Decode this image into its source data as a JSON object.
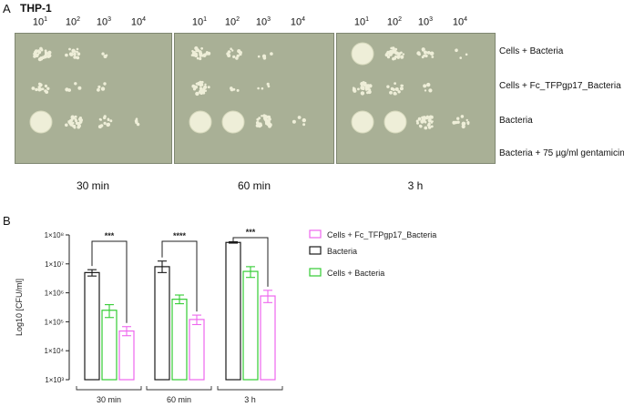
{
  "panel_a": {
    "letter": "A",
    "cell_line": "THP-1",
    "dilutions": [
      {
        "base": "10",
        "exp": "1"
      },
      {
        "base": "10",
        "exp": "2"
      },
      {
        "base": "10",
        "exp": "3"
      },
      {
        "base": "10",
        "exp": "4"
      }
    ],
    "row_labels": [
      "Cells + Bacteria",
      "Cells + Fc_TFPgp17_Bacteria",
      "Bacteria",
      "Bacteria + 75 µg/ml gentamicin"
    ],
    "time_labels": [
      "30 min",
      "60 min",
      "3 h"
    ],
    "plate_color": "#a9b096",
    "colony_color": "#eeeed8"
  },
  "panel_b": {
    "letter": "B",
    "chart_data": {
      "type": "bar",
      "title": "",
      "xlabel": "",
      "ylabel": "Log10 [CFU/ml]",
      "y_scale": "log",
      "ylim": [
        1000,
        100000000
      ],
      "y_ticks": [
        {
          "value": 100000000,
          "label": "1×10⁸"
        },
        {
          "value": 10000000,
          "label": "1×10⁷"
        },
        {
          "value": 1000000,
          "label": "1×10⁶"
        },
        {
          "value": 100000,
          "label": "1×10⁵"
        },
        {
          "value": 10000,
          "label": "1×10⁴"
        },
        {
          "value": 1000,
          "label": "1×10³"
        }
      ],
      "categories": [
        "30 min",
        "60 min",
        "3 h"
      ],
      "series": [
        {
          "name": "Bacteria",
          "color": "#1a1a1a",
          "values": [
            5000000,
            8000000,
            55000000
          ],
          "err_low": [
            3800000,
            5000000,
            52000000
          ],
          "err_high": [
            6300000,
            12500000,
            58000000
          ]
        },
        {
          "name": "Cells + Bacteria",
          "color": "#33cc33",
          "values": [
            250000,
            600000,
            5500000
          ],
          "err_low": [
            140000,
            420000,
            3400000
          ],
          "err_high": [
            390000,
            840000,
            8000000
          ]
        },
        {
          "name": "Cells + Fc_TFPgp17_Bacteria",
          "color": "#ee66ee",
          "values": [
            48000,
            120000,
            780000
          ],
          "err_low": [
            33000,
            80000,
            460000
          ],
          "err_high": [
            68000,
            170000,
            1220000
          ]
        }
      ],
      "significance": [
        "***",
        "****",
        "***"
      ],
      "legend_order": [
        "Cells + Fc_TFPgp17_Bacteria",
        "Bacteria",
        "Cells + Bacteria"
      ],
      "legend_position": "top-right",
      "grid": false
    }
  }
}
